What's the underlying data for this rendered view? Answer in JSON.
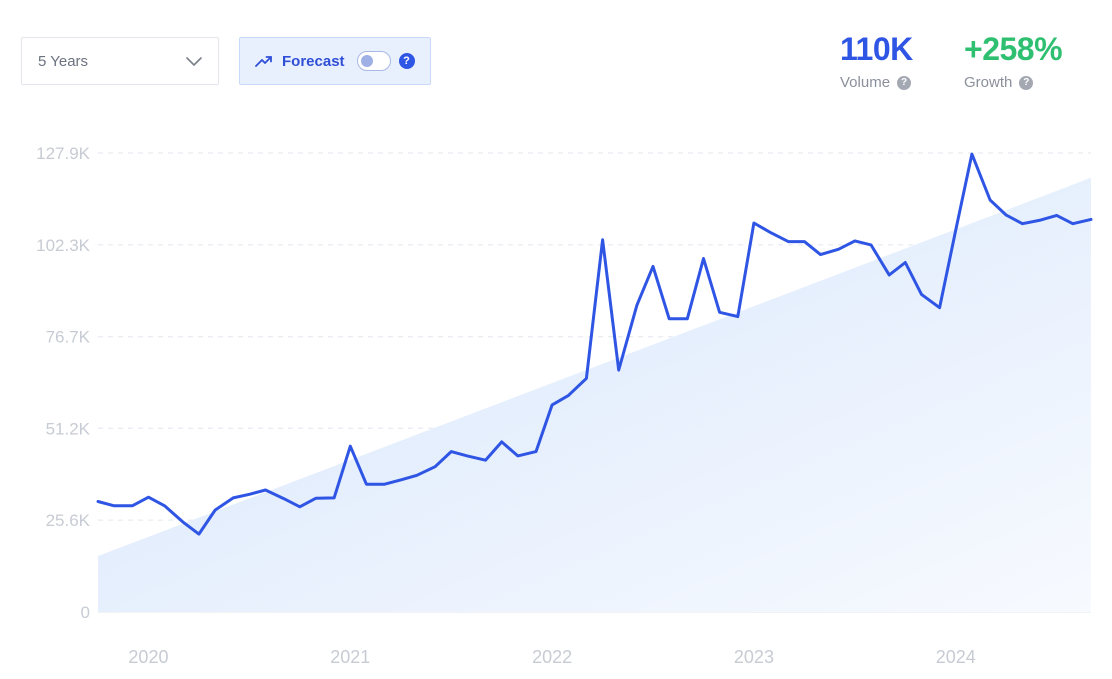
{
  "range_select": {
    "label": "5 Years"
  },
  "forecast": {
    "label": "Forecast",
    "enabled": false,
    "help": "?"
  },
  "metrics": {
    "volume": {
      "value": "110K",
      "label": "Volume",
      "color": "#2f55e4",
      "help": "?"
    },
    "growth": {
      "value": "+258%",
      "label": "Growth",
      "color": "#2fbf71",
      "help": "?"
    }
  },
  "colors": {
    "line": "#2f55e4",
    "trend_fill": "#dbe8fb",
    "grid": "#e2e6ee",
    "tick": "#c7cbd3"
  },
  "chart_data": {
    "type": "line",
    "title": "",
    "xlabel": "",
    "ylabel": "",
    "y_ticks": [
      "0",
      "25.6K",
      "51.2K",
      "76.7K",
      "102.3K",
      "127.9K"
    ],
    "y_tick_values": [
      0,
      25600,
      51200,
      76700,
      102300,
      127900
    ],
    "ylim": [
      0,
      127900
    ],
    "x_ticks": [
      "2020",
      "2021",
      "2022",
      "2023",
      "2024"
    ],
    "x_tick_values": [
      2020.0,
      2021.0,
      2022.0,
      2023.0,
      2024.0
    ],
    "xlim": [
      2019.75,
      2024.67
    ],
    "grid": true,
    "series": [
      {
        "x": [
          2019.75,
          2019.83,
          2019.92,
          2020.0,
          2020.08,
          2020.17,
          2020.25,
          2020.33,
          2020.42,
          2020.5,
          2020.58,
          2020.67,
          2020.75,
          2020.83,
          2020.92,
          2021.0,
          2021.08,
          2021.17,
          2021.25,
          2021.33,
          2021.42,
          2021.5,
          2021.58,
          2021.67,
          2021.75,
          2021.83,
          2021.92,
          2022.0,
          2022.08,
          2022.17,
          2022.25,
          2022.33,
          2022.42,
          2022.5,
          2022.58,
          2022.67,
          2022.75,
          2022.83,
          2022.92,
          2023.0,
          2023.08,
          2023.17,
          2023.25,
          2023.33,
          2023.42,
          2023.5,
          2023.58,
          2023.67,
          2023.75,
          2023.83,
          2023.92,
          2024.0,
          2024.08,
          2024.17,
          2024.25,
          2024.33,
          2024.42,
          2024.5,
          2024.58,
          2024.67
        ],
        "values": [
          30800,
          29600,
          29600,
          32000,
          29600,
          25100,
          21700,
          28400,
          31800,
          32800,
          34000,
          31600,
          29300,
          31700,
          31800,
          46200,
          35600,
          35600,
          36800,
          38100,
          40500,
          44700,
          43500,
          42300,
          47400,
          43500,
          44700,
          57700,
          60300,
          65100,
          103700,
          67400,
          85500,
          96300,
          81700,
          81700,
          98500,
          83500,
          82300,
          108400,
          105800,
          103200,
          103200,
          99600,
          101100,
          103400,
          102300,
          93900,
          97400,
          88500,
          84800,
          106500,
          127600,
          114800,
          110600,
          108200,
          109200,
          110500,
          108200,
          109400
        ]
      }
    ],
    "trend": {
      "x": [
        2019.75,
        2024.67
      ],
      "values": [
        15600,
        121000
      ]
    }
  }
}
